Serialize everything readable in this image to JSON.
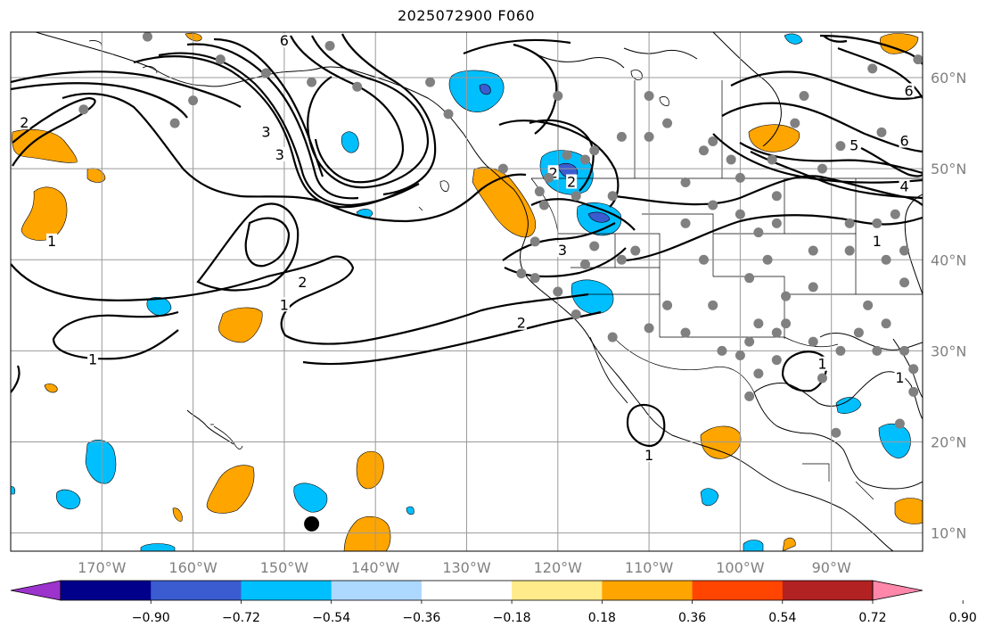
{
  "title": "2025072900 F060",
  "colors": {
    "frame": "#000000",
    "grid": "#9a9a9a",
    "station": "#808080",
    "tick_label": "#808080",
    "contour": "#000000"
  },
  "map": {
    "projection": "plate-carree",
    "lon_range": [
      -180,
      -80
    ],
    "lat_range": [
      8,
      65
    ],
    "lon_ticks": [
      {
        "lon": -170,
        "label": "170°W"
      },
      {
        "lon": -160,
        "label": "160°W"
      },
      {
        "lon": -150,
        "label": "150°W"
      },
      {
        "lon": -140,
        "label": "140°W"
      },
      {
        "lon": -130,
        "label": "130°W"
      },
      {
        "lon": -120,
        "label": "120°W"
      },
      {
        "lon": -110,
        "label": "110°W"
      },
      {
        "lon": -100,
        "label": "100°W"
      },
      {
        "lon": -90,
        "label": "90°W"
      }
    ],
    "lat_ticks": [
      {
        "lat": 10,
        "label": "10°N"
      },
      {
        "lat": 20,
        "label": "20°N"
      },
      {
        "lat": 30,
        "label": "30°N"
      },
      {
        "lat": 40,
        "label": "40°N"
      },
      {
        "lat": 50,
        "label": "50°N"
      },
      {
        "lat": 60,
        "label": "60°N"
      }
    ],
    "contour_labels": [
      {
        "text": "1",
        "lon": -171,
        "lat": 29
      },
      {
        "text": "1",
        "lon": -175.5,
        "lat": 42
      },
      {
        "text": "1",
        "lon": -150,
        "lat": 35
      },
      {
        "text": "1",
        "lon": -82.5,
        "lat": 27
      },
      {
        "text": "1",
        "lon": -110,
        "lat": 18.5
      },
      {
        "text": "1",
        "lon": -91,
        "lat": 28.5
      },
      {
        "text": "1",
        "lon": -85,
        "lat": 42
      },
      {
        "text": "2",
        "lon": -178.5,
        "lat": 55
      },
      {
        "text": "2",
        "lon": -148,
        "lat": 37.5
      },
      {
        "text": "2",
        "lon": -124,
        "lat": 33
      },
      {
        "text": "2",
        "lon": -118.5,
        "lat": 48.5
      },
      {
        "text": "2",
        "lon": -120.5,
        "lat": 49.5
      },
      {
        "text": "3",
        "lon": -150.5,
        "lat": 51.5
      },
      {
        "text": "3",
        "lon": -152,
        "lat": 54
      },
      {
        "text": "3",
        "lon": -119.5,
        "lat": 41
      },
      {
        "text": "4",
        "lon": -82,
        "lat": 48
      },
      {
        "text": "5",
        "lon": -87.5,
        "lat": 52.5
      },
      {
        "text": "6",
        "lon": -150,
        "lat": 64
      },
      {
        "text": "6",
        "lon": -81.5,
        "lat": 58.5
      },
      {
        "text": "6",
        "lon": -82,
        "lat": 53
      }
    ],
    "typhoon_marker": {
      "lon": -147,
      "lat": 11
    }
  },
  "colorbar": {
    "colors": [
      "#9b33cc",
      "#00008b",
      "#3b5cd0",
      "#00bfff",
      "#add8ff",
      "#ffffff",
      "#ffeb8a",
      "#ffa500",
      "#ff4500",
      "#b22222",
      "#ff88aa"
    ],
    "labels": [
      "−0.90",
      "−0.72",
      "−0.54",
      "−0.36",
      "−0.18",
      "0.18",
      "0.36",
      "0.54",
      "0.72",
      "0.90"
    ]
  }
}
